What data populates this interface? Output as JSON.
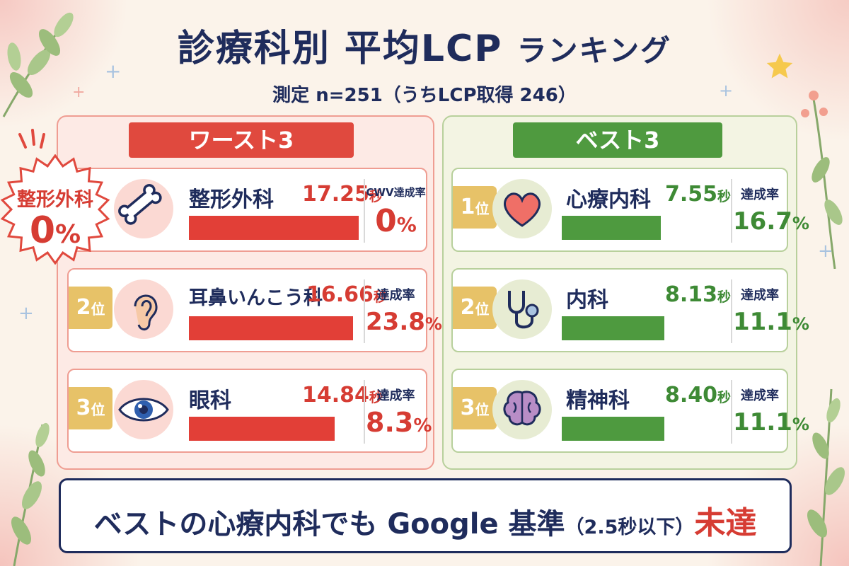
{
  "title_main": "診療科別 平均LCP",
  "title_suffix": "ランキング",
  "subtitle": "測定 n=251（うちLCP取得 246）",
  "worst": {
    "header": "ワースト3",
    "callout": {
      "name": "整形外科",
      "value": "0",
      "unit": "%"
    },
    "items": [
      {
        "rank": "",
        "rank_unit": "",
        "icon": "bone-icon",
        "name": "整形外科",
        "time": "17.25",
        "time_unit": "秒",
        "metric_label": "CWV達成率",
        "rate": "0",
        "rate_unit": "%"
      },
      {
        "rank": "2",
        "rank_unit": "位",
        "icon": "ear-icon",
        "name": "耳鼻いんこう科",
        "time": "16.66",
        "time_unit": "秒",
        "metric_label": "達成率",
        "rate": "23.8",
        "rate_unit": "%"
      },
      {
        "rank": "3",
        "rank_unit": "位",
        "icon": "eye-icon",
        "name": "眼科",
        "time": "14.84",
        "time_unit": "秒",
        "metric_label": "達成率",
        "rate": "8.3",
        "rate_unit": "%"
      }
    ]
  },
  "best": {
    "header": "ベスト3",
    "items": [
      {
        "rank": "1",
        "rank_unit": "位",
        "icon": "heart-icon",
        "name": "心療内科",
        "time": "7.55",
        "time_unit": "秒",
        "metric_label": "達成率",
        "rate": "16.7",
        "rate_unit": "%"
      },
      {
        "rank": "2",
        "rank_unit": "位",
        "icon": "stethoscope-icon",
        "name": "内科",
        "time": "8.13",
        "time_unit": "秒",
        "metric_label": "達成率",
        "rate": "11.1",
        "rate_unit": "%"
      },
      {
        "rank": "3",
        "rank_unit": "位",
        "icon": "brain-icon",
        "name": "精神科",
        "time": "8.40",
        "time_unit": "秒",
        "metric_label": "達成率",
        "rate": "11.1",
        "rate_unit": "%"
      }
    ]
  },
  "footer": {
    "part1": "ベストの心療内科でも Google 基準",
    "paren": "（2.5秒以下）",
    "emphasis": "未達"
  },
  "colors": {
    "worst": "#e23f37",
    "best": "#4e9a3f",
    "navy": "#1f2c5c",
    "rank_badge": "#e7c268"
  },
  "chart_data": {
    "type": "bar",
    "title": "診療科別 平均LCP ランキング",
    "subtitle": "測定 n=251（うちLCP取得 246）",
    "unit": "秒",
    "series": [
      {
        "name": "ワースト3",
        "categories": [
          "整形外科",
          "耳鼻いんこう科",
          "眼科"
        ],
        "values": [
          17.25,
          16.66,
          14.84
        ],
        "rates": [
          0,
          23.8,
          8.3
        ]
      },
      {
        "name": "ベスト3",
        "categories": [
          "心療内科",
          "内科",
          "精神科"
        ],
        "values": [
          7.55,
          8.13,
          8.4
        ],
        "rates": [
          16.7,
          11.1,
          11.1
        ]
      }
    ]
  }
}
